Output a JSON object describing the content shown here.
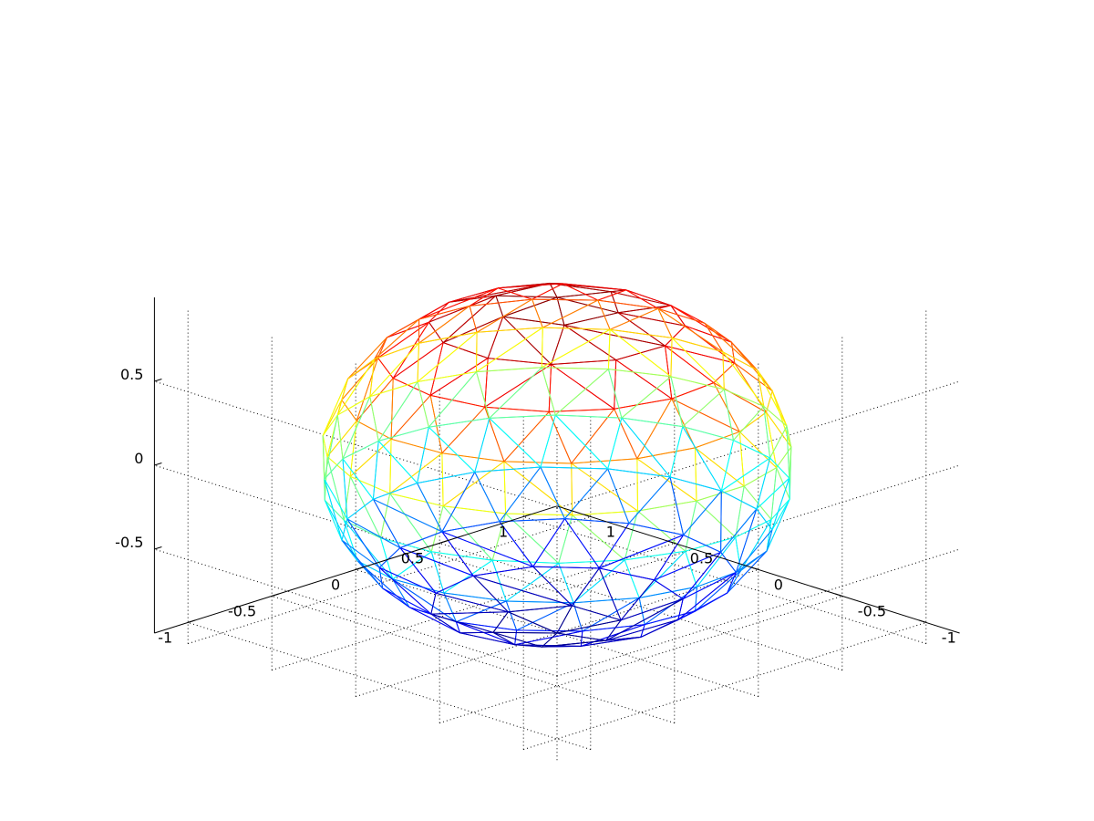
{
  "chart_data": {
    "type": "mesh",
    "title": "",
    "xlabel": "",
    "ylabel": "",
    "zlabel": "",
    "xlim": [
      -1.2,
      1.2
    ],
    "ylim": [
      -1.2,
      1.2
    ],
    "zlim": [
      -1,
      1
    ],
    "x_ticks": [
      {
        "value": -1,
        "label": "-1"
      },
      {
        "value": -0.5,
        "label": "-0.5"
      },
      {
        "value": 0,
        "label": "0"
      },
      {
        "value": 0.5,
        "label": "0.5"
      },
      {
        "value": 1,
        "label": "1"
      }
    ],
    "y_ticks": [
      {
        "value": -1,
        "label": "-1"
      },
      {
        "value": -0.5,
        "label": "-0.5"
      },
      {
        "value": 0,
        "label": "0"
      },
      {
        "value": 0.5,
        "label": "0.5"
      },
      {
        "value": 1,
        "label": "1"
      }
    ],
    "z_ticks": [
      {
        "value": -0.5,
        "label": "-0.5"
      },
      {
        "value": 0,
        "label": "0"
      },
      {
        "value": 0.5,
        "label": "0.5"
      }
    ],
    "grid": true,
    "colormap": "jet",
    "surface": {
      "shape": "unit sphere, geodesic triangulated wireframe",
      "radius": 1,
      "z_range": [
        -1,
        1
      ],
      "latitude_rings": 11,
      "faceted_edges": true
    }
  }
}
